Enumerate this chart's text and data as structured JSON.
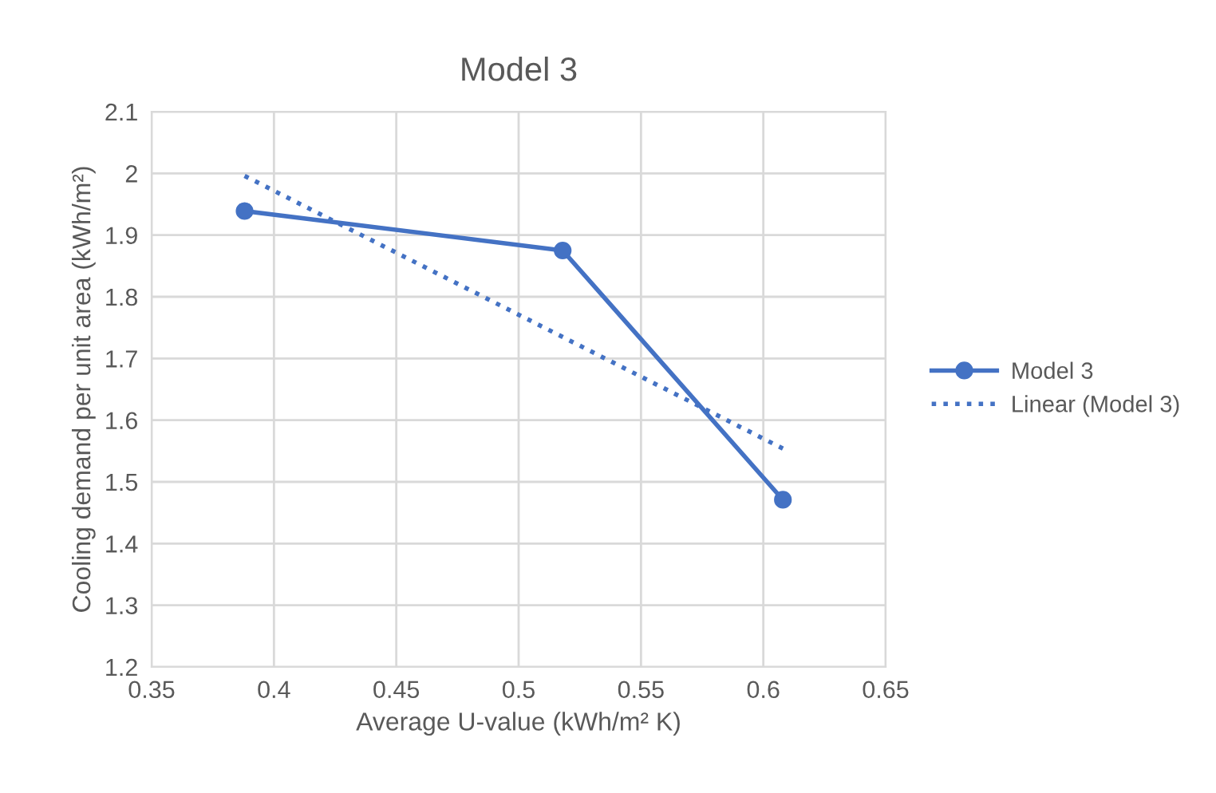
{
  "chart_data": {
    "type": "line",
    "title": "Model 3",
    "xlabel": "Average U-value (kWh/m² K)",
    "ylabel": "Cooling demand per unit area (kWh/m²)",
    "xlim": [
      0.35,
      0.65
    ],
    "xticks": [
      0.35,
      0.4,
      0.45,
      0.5,
      0.55,
      0.6,
      0.65
    ],
    "ylim": [
      1.2,
      2.1
    ],
    "yticks": [
      1.2,
      1.3,
      1.4,
      1.5,
      1.6,
      1.7,
      1.8,
      1.9,
      2,
      2.1
    ],
    "grid": true,
    "legend": "right",
    "series": [
      {
        "name": "Model 3",
        "color": "#4472c4",
        "x": [
          0.388,
          0.518,
          0.608
        ],
        "values": [
          1.939,
          1.875,
          1.471
        ],
        "marker": "circle",
        "line_style": "solid"
      },
      {
        "name": "Linear (Model 3)",
        "color": "#4472c4",
        "x": [
          0.388,
          0.608
        ],
        "values": [
          1.996,
          1.554
        ],
        "marker": "none",
        "line_style": "dotted"
      }
    ]
  }
}
